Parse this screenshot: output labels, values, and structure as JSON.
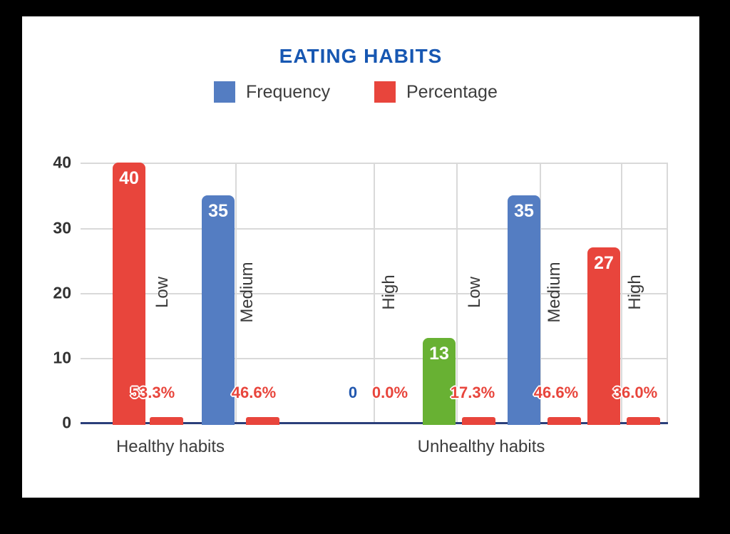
{
  "window": {
    "background": "#000000",
    "card_background": "#ffffff"
  },
  "chart_data": {
    "type": "bar",
    "title": "EATING HABITS",
    "title_color": "#1757b2",
    "legend": [
      {
        "label": "Frequency",
        "color": "#547dc2"
      },
      {
        "label": "Percentage",
        "color": "#e8453c"
      }
    ],
    "legend_position": "top",
    "grid": true,
    "xlabel": "",
    "ylabel": "",
    "ylim": [
      0,
      40
    ],
    "yticks": [
      "40",
      "30",
      "20",
      "10",
      "0"
    ],
    "percentage_text_color": "#e8453c",
    "zero_value_color": "#2157ae",
    "groups": [
      {
        "label": "Healthy habits",
        "items": [
          {
            "category": "Low",
            "frequency": 40,
            "frequency_label": "40",
            "percentage": 53.3,
            "percentage_label": "53.3%",
            "color": "#e8453c"
          },
          {
            "category": "Medium",
            "frequency": 35,
            "frequency_label": "35",
            "percentage": 46.6,
            "percentage_label": "46.6%",
            "color": "#547dc2"
          },
          {
            "category": "High",
            "frequency": 0,
            "frequency_label": "0",
            "percentage": 0.0,
            "percentage_label": "0.0%",
            "color": "#2157ae"
          }
        ]
      },
      {
        "label": "Unhealthy habits",
        "items": [
          {
            "category": "Low",
            "frequency": 13,
            "frequency_label": "13",
            "percentage": 17.3,
            "percentage_label": "17.3%",
            "color": "#68b133"
          },
          {
            "category": "Medium",
            "frequency": 35,
            "frequency_label": "35",
            "percentage": 46.6,
            "percentage_label": "46.6%",
            "color": "#547dc2"
          },
          {
            "category": "High",
            "frequency": 27,
            "frequency_label": "27",
            "percentage": 36.0,
            "percentage_label": "36.0%",
            "color": "#e8453c"
          }
        ]
      }
    ]
  }
}
